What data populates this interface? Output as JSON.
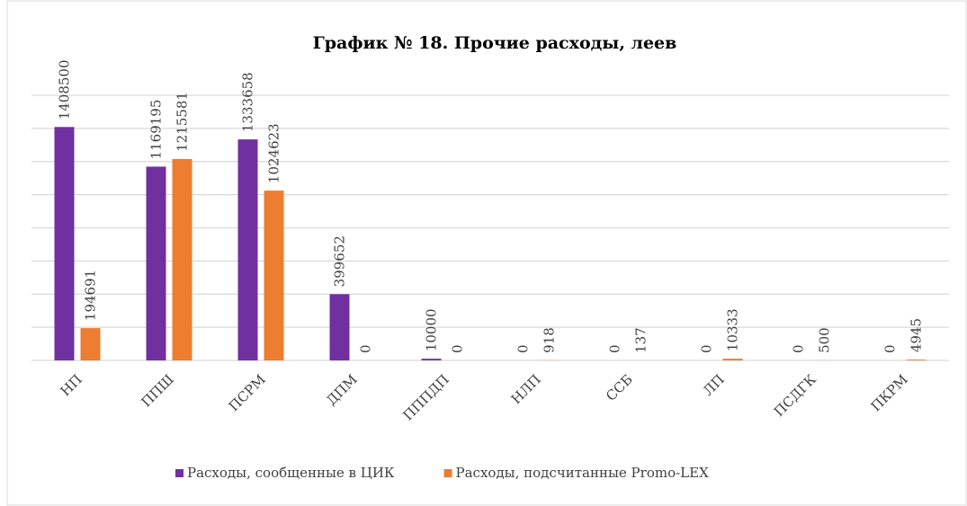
{
  "chart_data": {
    "type": "bar",
    "title": "График № 18. Прочие расходы, леев",
    "categories": [
      "НП",
      "ППШ",
      "ПСРМ",
      "ДПМ",
      "ПППДП",
      "НЛП",
      "ССБ",
      "ЛП",
      "ПСДГК",
      "ПКРМ"
    ],
    "series": [
      {
        "name": "Расходы, сообщенные в ЦИК",
        "color": "#7030a0",
        "values": [
          1408500,
          1169195,
          1333658,
          399652,
          10000,
          0,
          0,
          0,
          0,
          0
        ]
      },
      {
        "name": "Расходы, подсчитанные Promo-LEX",
        "color": "#ed7d31",
        "values": [
          194691,
          1215581,
          1024623,
          0,
          0,
          918,
          137,
          10333,
          500,
          4945
        ]
      }
    ],
    "ylim": [
      0,
      1600000
    ],
    "yticks": [
      0,
      200000,
      400000,
      600000,
      800000,
      1000000,
      1200000,
      1400000,
      1600000
    ],
    "grid": true,
    "legend": "bottom"
  }
}
